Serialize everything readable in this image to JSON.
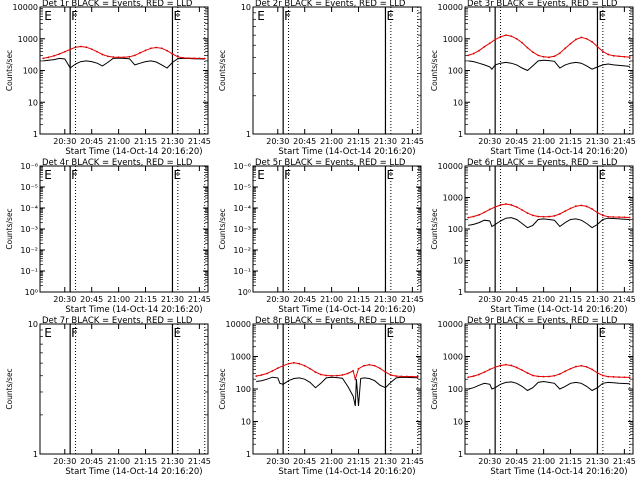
{
  "x_ticks": [
    "20:30",
    "20:45",
    "21:00",
    "21:15",
    "21:30",
    "21:45"
  ],
  "x_tick_values": [
    20.5,
    20.75,
    21.0,
    21.25,
    21.5,
    21.75
  ],
  "xlabel": "Start Time (14-Oct-14 20:16:20)",
  "ylabel": "Counts/sec",
  "colors": {
    "events": "#000000",
    "lld": "#e00000",
    "frame": "#000000"
  },
  "chart_data": [
    {
      "type": "line",
      "title": "Det 1r BLACK = Events, RED = LLD",
      "log": true,
      "ylim": [
        1,
        10000
      ],
      "yticks": [
        "1",
        "10",
        "100",
        "1000",
        "10000"
      ],
      "markers": [
        {
          "label": "E",
          "x": 20.3
        },
        {
          "label": "F",
          "x": 20.55
        },
        {
          "label": "E",
          "x": 21.5
        }
      ],
      "solid_lines": [
        20.55,
        21.5
      ],
      "dotted_lines": [
        20.6,
        21.55,
        21.8
      ],
      "series": [
        {
          "role": "events",
          "x": [
            20.3,
            20.35,
            20.4,
            20.45,
            20.5,
            20.52,
            20.55,
            20.6,
            20.65,
            20.7,
            20.75,
            20.8,
            20.85,
            20.9,
            20.95,
            21.0,
            21.05,
            21.1,
            21.15,
            21.2,
            21.25,
            21.3,
            21.35,
            21.4,
            21.45,
            21.5,
            21.55,
            21.6,
            21.65,
            21.7,
            21.75,
            21.8
          ],
          "y": [
            200,
            210,
            220,
            240,
            230,
            180,
            120,
            160,
            190,
            200,
            190,
            170,
            140,
            180,
            240,
            245,
            240,
            235,
            150,
            170,
            190,
            200,
            185,
            150,
            120,
            180,
            235,
            240,
            238,
            235,
            232,
            230
          ]
        },
        {
          "role": "lld",
          "x": [
            20.3,
            20.35,
            20.4,
            20.45,
            20.5,
            20.55,
            20.6,
            20.65,
            20.7,
            20.75,
            20.8,
            20.85,
            20.9,
            20.95,
            21.0,
            21.05,
            21.1,
            21.15,
            21.2,
            21.25,
            21.3,
            21.35,
            21.4,
            21.45,
            21.5,
            21.55,
            21.6,
            21.65,
            21.7,
            21.75,
            21.8
          ],
          "y": [
            240,
            260,
            290,
            330,
            390,
            460,
            540,
            570,
            540,
            470,
            390,
            320,
            280,
            265,
            260,
            262,
            270,
            300,
            360,
            430,
            500,
            530,
            500,
            420,
            330,
            270,
            250,
            245,
            242,
            240,
            238
          ]
        }
      ]
    },
    {
      "type": "line",
      "title": "Det 2r BLACK = Events, RED = LLD",
      "log": true,
      "ylim": [
        1,
        10
      ],
      "yticks": [
        "1",
        "10"
      ],
      "markers": [
        {
          "label": "E",
          "x": 20.3
        },
        {
          "label": "F",
          "x": 20.55
        },
        {
          "label": "E",
          "x": 21.5
        }
      ],
      "solid_lines": [
        20.55,
        21.5
      ],
      "dotted_lines": [
        20.6,
        21.55,
        21.8
      ],
      "series": []
    },
    {
      "type": "line",
      "title": "Det 3r BLACK = Events, RED = LLD",
      "log": true,
      "ylim": [
        1,
        10000
      ],
      "yticks": [
        "1",
        "10",
        "100",
        "1000",
        "10000"
      ],
      "markers": [
        {
          "label": "E",
          "x": 21.5
        }
      ],
      "solid_lines": [
        20.55,
        21.5
      ],
      "dotted_lines": [
        20.6,
        21.55,
        21.8
      ],
      "series": [
        {
          "role": "events",
          "x": [
            20.3,
            20.35,
            20.4,
            20.45,
            20.5,
            20.52,
            20.55,
            20.6,
            20.65,
            20.7,
            20.75,
            20.8,
            20.85,
            20.9,
            20.95,
            21.0,
            21.05,
            21.1,
            21.15,
            21.2,
            21.25,
            21.3,
            21.35,
            21.4,
            21.45,
            21.5,
            21.55,
            21.6,
            21.65,
            21.7,
            21.75,
            21.8
          ],
          "y": [
            200,
            190,
            170,
            150,
            130,
            110,
            150,
            170,
            180,
            170,
            150,
            120,
            100,
            140,
            200,
            210,
            205,
            195,
            120,
            150,
            170,
            180,
            170,
            140,
            110,
            130,
            150,
            160,
            150,
            145,
            140,
            135
          ]
        },
        {
          "role": "lld",
          "x": [
            20.3,
            20.35,
            20.4,
            20.45,
            20.5,
            20.55,
            20.6,
            20.65,
            20.7,
            20.75,
            20.8,
            20.85,
            20.9,
            20.95,
            21.0,
            21.05,
            21.1,
            21.15,
            21.2,
            21.25,
            21.3,
            21.35,
            21.4,
            21.45,
            21.5,
            21.55,
            21.6,
            21.65,
            21.7,
            21.75,
            21.8
          ],
          "y": [
            300,
            340,
            420,
            560,
            720,
            950,
            1150,
            1300,
            1200,
            1000,
            750,
            520,
            380,
            300,
            270,
            260,
            280,
            350,
            500,
            700,
            950,
            1100,
            1000,
            800,
            560,
            400,
            320,
            290,
            280,
            270,
            265
          ]
        }
      ]
    },
    {
      "type": "line",
      "title": "Det 4r BLACK = Events, RED = LLD",
      "log": true,
      "ylim": [
        1,
        1e-06
      ],
      "yticks": [
        "10⁰",
        "10⁻¹",
        "10⁻²",
        "10⁻³",
        "10⁻⁴",
        "10⁻⁵",
        "10⁻⁶"
      ],
      "markers": [
        {
          "label": "E",
          "x": 20.3
        },
        {
          "label": "F",
          "x": 20.55
        },
        {
          "label": "E",
          "x": 21.5
        }
      ],
      "solid_lines": [
        20.55,
        21.5
      ],
      "dotted_lines": [
        20.6,
        21.55,
        21.8
      ],
      "series": []
    },
    {
      "type": "line",
      "title": "Det 5r BLACK = Events, RED = LLD",
      "log": true,
      "ylim": [
        1,
        1e-06
      ],
      "yticks": [
        "10⁰",
        "10⁻¹",
        "10⁻²",
        "10⁻³",
        "10⁻⁴",
        "10⁻⁵",
        "10⁻⁶"
      ],
      "markers": [
        {
          "label": "E",
          "x": 20.3
        },
        {
          "label": "F",
          "x": 20.55
        },
        {
          "label": "E",
          "x": 21.5
        }
      ],
      "solid_lines": [
        20.55,
        21.5
      ],
      "dotted_lines": [
        20.6,
        21.55,
        21.8
      ],
      "series": []
    },
    {
      "type": "line",
      "title": "Det 6r BLACK = Events, RED = LLD",
      "log": true,
      "ylim": [
        1,
        10000
      ],
      "yticks": [
        "1",
        "10",
        "100",
        "1000",
        "10000"
      ],
      "markers": [
        {
          "label": "E",
          "x": 21.5
        }
      ],
      "solid_lines": [
        20.55,
        21.5
      ],
      "dotted_lines": [
        20.6,
        21.55,
        21.8
      ],
      "series": [
        {
          "role": "events",
          "x": [
            20.3,
            20.35,
            20.4,
            20.45,
            20.5,
            20.52,
            20.55,
            20.6,
            20.65,
            20.7,
            20.75,
            20.8,
            20.85,
            20.9,
            20.95,
            21.0,
            21.05,
            21.1,
            21.15,
            21.2,
            21.25,
            21.3,
            21.35,
            21.4,
            21.45,
            21.5,
            21.55,
            21.6,
            21.65,
            21.7,
            21.75,
            21.8
          ],
          "y": [
            130,
            140,
            160,
            190,
            180,
            120,
            140,
            180,
            220,
            230,
            200,
            150,
            110,
            130,
            200,
            210,
            200,
            190,
            120,
            160,
            200,
            210,
            190,
            150,
            110,
            140,
            200,
            220,
            215,
            210,
            205,
            200
          ]
        },
        {
          "role": "lld",
          "x": [
            20.3,
            20.35,
            20.4,
            20.45,
            20.5,
            20.55,
            20.6,
            20.65,
            20.7,
            20.75,
            20.8,
            20.85,
            20.9,
            20.95,
            21.0,
            21.05,
            21.1,
            21.15,
            21.2,
            21.25,
            21.3,
            21.35,
            21.4,
            21.45,
            21.5,
            21.55,
            21.6,
            21.65,
            21.7,
            21.75,
            21.8
          ],
          "y": [
            230,
            250,
            280,
            340,
            420,
            500,
            580,
            620,
            580,
            500,
            400,
            320,
            270,
            250,
            245,
            248,
            260,
            300,
            370,
            450,
            530,
            560,
            520,
            430,
            330,
            270,
            245,
            240,
            238,
            235,
            232
          ]
        }
      ]
    },
    {
      "type": "line",
      "title": "Det 7r BLACK = Events, RED = LLD",
      "log": true,
      "ylim": [
        1,
        10
      ],
      "yticks": [
        "1",
        "10"
      ],
      "markers": [
        {
          "label": "E",
          "x": 20.3
        },
        {
          "label": "F",
          "x": 20.55
        },
        {
          "label": "E",
          "x": 21.5
        }
      ],
      "solid_lines": [
        20.55,
        21.5
      ],
      "dotted_lines": [
        20.6,
        21.55,
        21.8
      ],
      "series": []
    },
    {
      "type": "line",
      "title": "Det 8r BLACK = Events, RED = LLD",
      "log": true,
      "ylim": [
        1,
        10000
      ],
      "yticks": [
        "1",
        "10",
        "100",
        "1000",
        "10000"
      ],
      "markers": [
        {
          "label": "E",
          "x": 21.5
        }
      ],
      "solid_lines": [
        20.55,
        21.5
      ],
      "dotted_lines": [
        20.6,
        21.55,
        21.8
      ],
      "series": [
        {
          "role": "events",
          "x": [
            20.3,
            20.35,
            20.4,
            20.45,
            20.5,
            20.52,
            20.55,
            20.6,
            20.65,
            20.7,
            20.75,
            20.8,
            20.85,
            20.9,
            20.95,
            21.0,
            21.05,
            21.1,
            21.15,
            21.2,
            21.22,
            21.23,
            21.25,
            21.27,
            21.3,
            21.35,
            21.4,
            21.45,
            21.5,
            21.55,
            21.6,
            21.65,
            21.7,
            21.75,
            21.8
          ],
          "y": [
            170,
            180,
            200,
            230,
            220,
            150,
            140,
            180,
            210,
            220,
            200,
            160,
            110,
            150,
            220,
            230,
            225,
            215,
            120,
            60,
            30,
            200,
            30,
            210,
            220,
            210,
            180,
            130,
            110,
            160,
            220,
            230,
            228,
            225,
            222
          ]
        },
        {
          "role": "lld",
          "x": [
            20.3,
            20.35,
            20.4,
            20.45,
            20.5,
            20.55,
            20.6,
            20.65,
            20.7,
            20.75,
            20.8,
            20.85,
            20.9,
            20.95,
            21.0,
            21.05,
            21.1,
            21.15,
            21.2,
            21.22,
            21.25,
            21.3,
            21.35,
            21.4,
            21.45,
            21.5,
            21.55,
            21.6,
            21.65,
            21.7,
            21.75,
            21.8
          ],
          "y": [
            250,
            270,
            300,
            360,
            440,
            520,
            600,
            640,
            600,
            520,
            420,
            330,
            280,
            260,
            255,
            258,
            270,
            300,
            360,
            200,
            420,
            520,
            560,
            520,
            430,
            330,
            270,
            250,
            245,
            242,
            240,
            238
          ]
        }
      ]
    },
    {
      "type": "line",
      "title": "Det 9r BLACK = Events, RED = LLD",
      "log": true,
      "ylim": [
        1,
        10000
      ],
      "yticks": [
        "1",
        "10",
        "100",
        "1000",
        "10000"
      ],
      "markers": [
        {
          "label": "E",
          "x": 21.5
        }
      ],
      "solid_lines": [
        20.55,
        21.5
      ],
      "dotted_lines": [
        20.6,
        21.55,
        21.8
      ],
      "series": [
        {
          "role": "events",
          "x": [
            20.3,
            20.35,
            20.4,
            20.45,
            20.5,
            20.52,
            20.55,
            20.6,
            20.65,
            20.7,
            20.75,
            20.8,
            20.85,
            20.9,
            20.95,
            21.0,
            21.05,
            21.1,
            21.15,
            21.2,
            21.25,
            21.3,
            21.35,
            21.4,
            21.45,
            21.5,
            21.55,
            21.6,
            21.65,
            21.7,
            21.75,
            21.8
          ],
          "y": [
            100,
            110,
            130,
            150,
            140,
            100,
            110,
            140,
            160,
            165,
            150,
            120,
            90,
            110,
            160,
            170,
            160,
            150,
            100,
            120,
            150,
            160,
            150,
            120,
            90,
            110,
            150,
            160,
            155,
            150,
            148,
            145
          ]
        },
        {
          "role": "lld",
          "x": [
            20.3,
            20.35,
            20.4,
            20.45,
            20.5,
            20.55,
            20.6,
            20.65,
            20.7,
            20.75,
            20.8,
            20.85,
            20.9,
            20.95,
            21.0,
            21.05,
            21.1,
            21.15,
            21.2,
            21.25,
            21.3,
            21.35,
            21.4,
            21.45,
            21.5,
            21.55,
            21.6,
            21.65,
            21.7,
            21.75,
            21.8
          ],
          "y": [
            230,
            250,
            280,
            330,
            400,
            470,
            530,
            560,
            530,
            460,
            380,
            310,
            260,
            245,
            240,
            242,
            255,
            290,
            350,
            420,
            490,
            520,
            480,
            400,
            310,
            260,
            240,
            235,
            232,
            230,
            228
          ]
        }
      ]
    }
  ]
}
